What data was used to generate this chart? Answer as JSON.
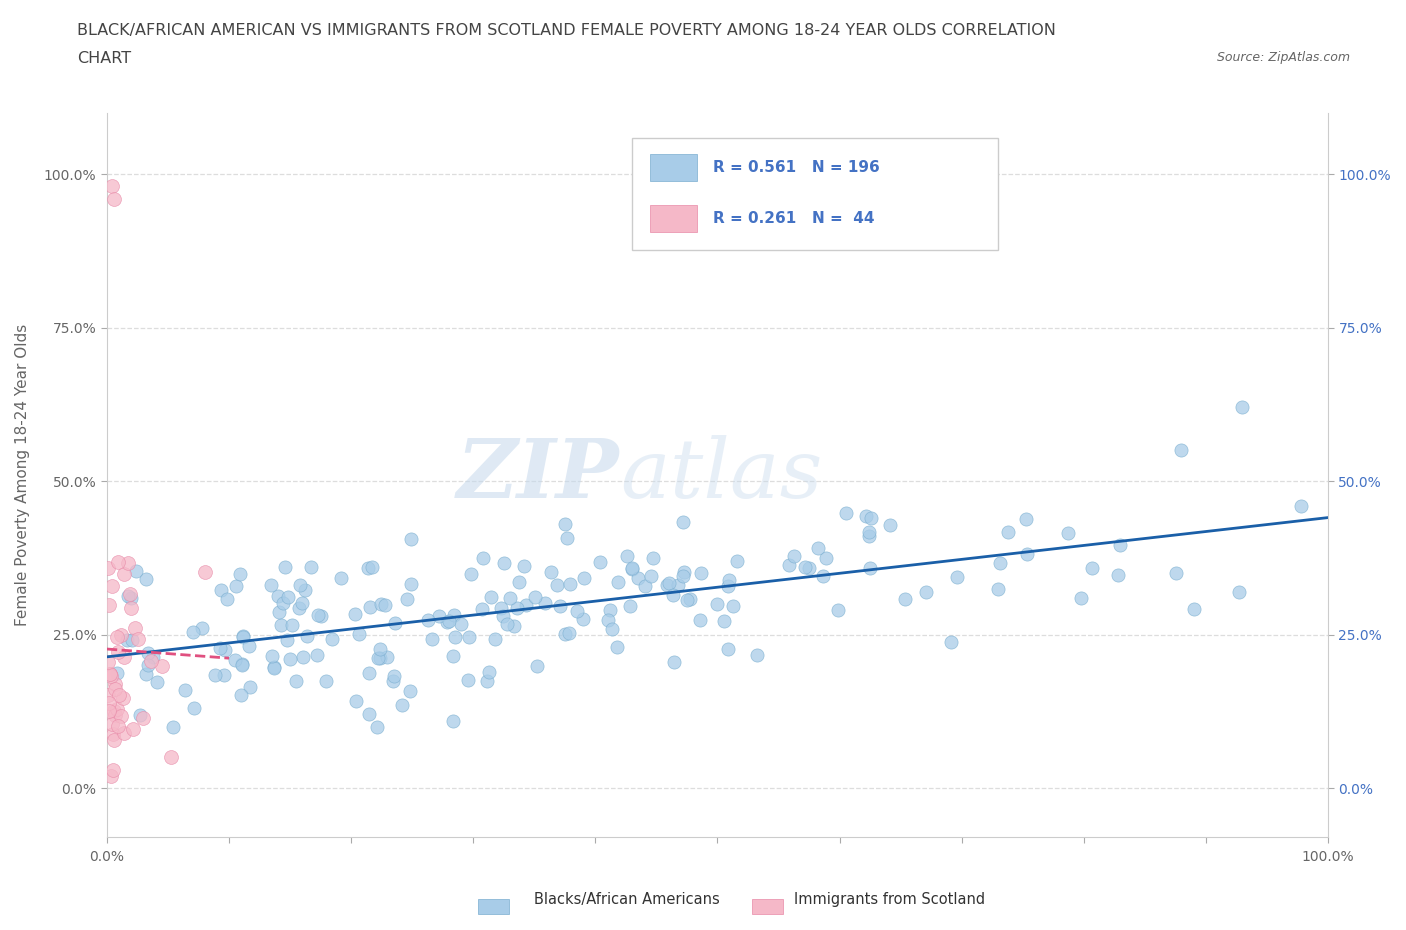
{
  "title_line1": "BLACK/AFRICAN AMERICAN VS IMMIGRANTS FROM SCOTLAND FEMALE POVERTY AMONG 18-24 YEAR OLDS CORRELATION",
  "title_line2": "CHART",
  "source_text": "Source: ZipAtlas.com",
  "ylabel": "Female Poverty Among 18-24 Year Olds",
  "watermark": "ZIPatlas",
  "blue_R": 0.561,
  "blue_N": 196,
  "pink_R": 0.261,
  "pink_N": 44,
  "blue_color": "#a8cce8",
  "blue_edge_color": "#7aaed0",
  "pink_color": "#f5b8c8",
  "pink_edge_color": "#e88aa8",
  "blue_trend_color": "#1a5fa8",
  "pink_trend_color": "#e05080",
  "legend_blue_label": "Blacks/African Americans",
  "legend_pink_label": "Immigrants from Scotland",
  "xlim": [
    0,
    1
  ],
  "ylim": [
    -0.08,
    1.1
  ],
  "ytick_positions": [
    0,
    0.25,
    0.5,
    0.75,
    1.0
  ],
  "ytick_labels": [
    "0.0%",
    "25.0%",
    "50.0%",
    "75.0%",
    "100.0%"
  ],
  "xtick_positions": [
    0,
    0.1,
    0.2,
    0.3,
    0.4,
    0.5,
    0.6,
    0.7,
    0.8,
    0.9,
    1.0
  ],
  "xtick_labels": [
    "0.0%",
    "",
    "",
    "",
    "",
    "",
    "",
    "",
    "",
    "",
    "100.0%"
  ],
  "grid_color": "#dddddd",
  "background_color": "#ffffff",
  "title_color": "#444444",
  "label_color": "#666666",
  "legend_RN_color": "#4472c4",
  "right_tick_color": "#4472c4"
}
